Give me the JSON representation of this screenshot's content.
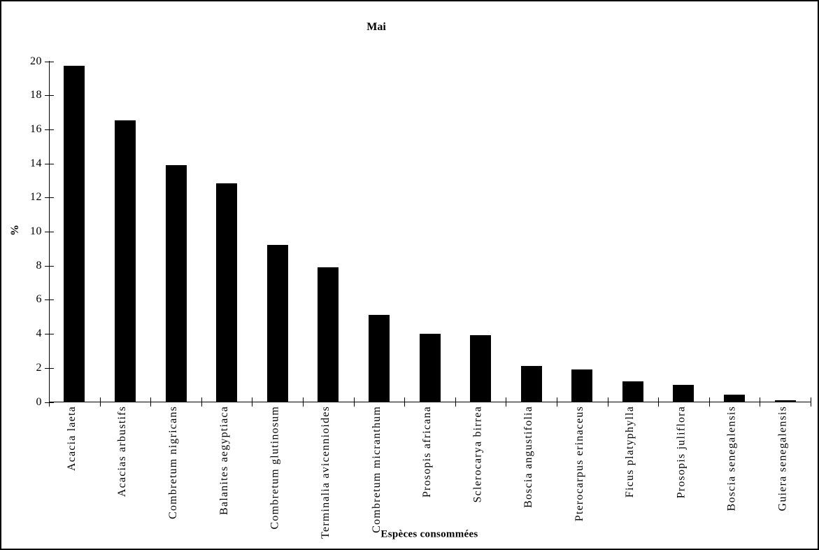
{
  "chart_data": {
    "type": "bar",
    "title": "Mai",
    "xlabel": "Espèces consommées",
    "ylabel": "%",
    "categories": [
      "Acacia laeta",
      "Acacias arbustifs",
      "Combretum nigricans",
      "Balanites aegyptiaca",
      "Combretum glutinosum",
      "Terminalia avicennioides",
      "Combretum micranthum",
      "Prosopis africana",
      "Sclerocarya birrea",
      "Boscia angustifolia",
      "Pterocarpus erinaceus",
      "Ficus platyphylla",
      "Prosopis juliflora",
      "Boscia senegalensis",
      "Guiera senegalensis"
    ],
    "values": [
      19.7,
      16.5,
      13.9,
      12.8,
      9.2,
      7.9,
      5.1,
      4,
      3.9,
      2.1,
      1.9,
      1.2,
      1,
      0.4,
      0.1
    ],
    "ylim": [
      0,
      20
    ],
    "yticks": [
      0,
      2,
      4,
      6,
      8,
      10,
      12,
      14,
      16,
      18,
      20
    ],
    "grid": false,
    "legend": "none",
    "bar_color": "#000000",
    "background_color": "#ffffff",
    "text_color": "#000000"
  }
}
